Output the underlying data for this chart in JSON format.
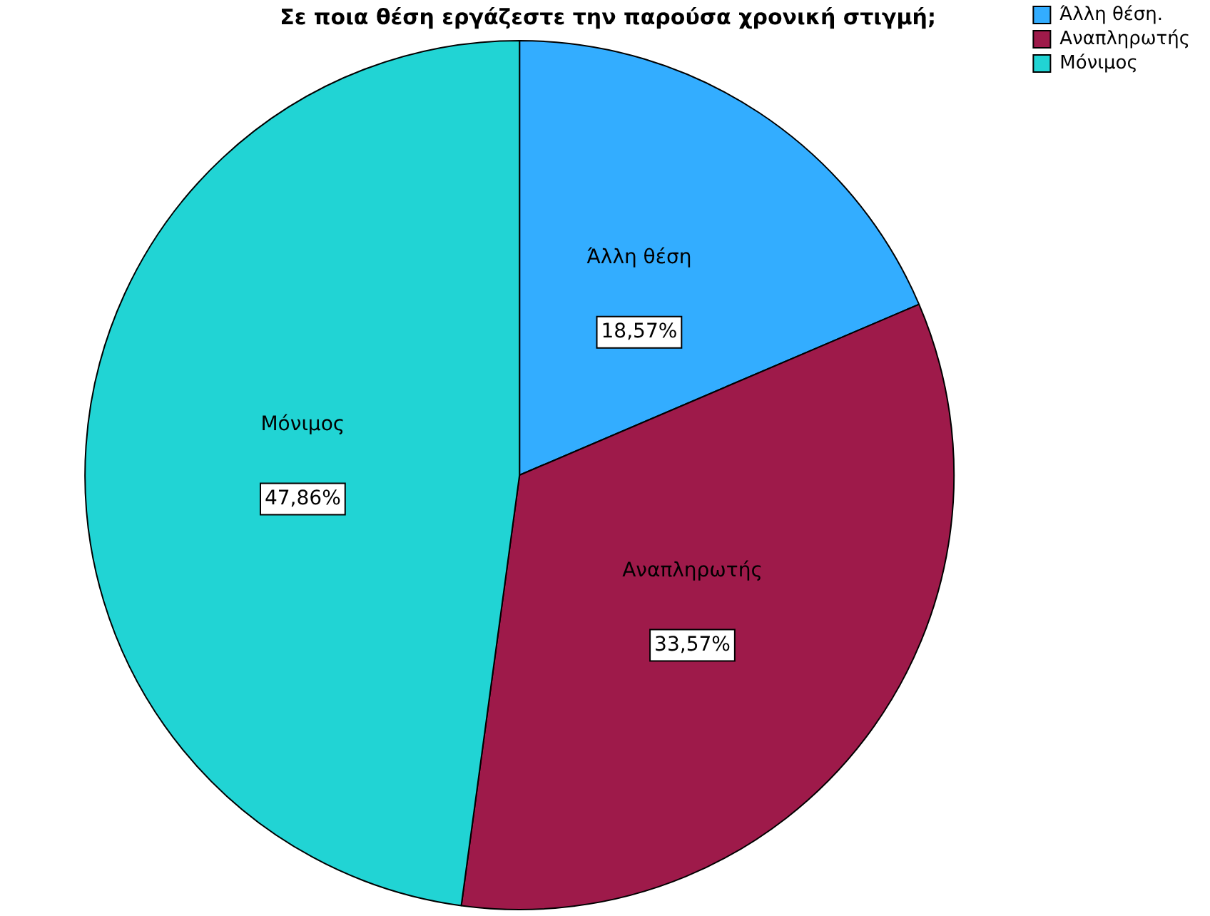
{
  "chart_data": {
    "type": "pie",
    "title": "Σε ποια θέση εργάζεστε την παρούσα χρονική στιγμή;",
    "categories": [
      "Άλλη θέση.",
      "Αναπληρωτής",
      "Μόνιμος"
    ],
    "values": [
      18.57,
      33.57,
      47.86
    ],
    "value_labels": [
      "18,57%",
      "33,57%",
      "47,86%"
    ],
    "colors": [
      "#33adff",
      "#9e1a4a",
      "#21d4d4"
    ],
    "annotations": [
      {
        "text": "Άλλη θέση",
        "x": "Άλλη θέση."
      },
      {
        "text": "Αναπληρωτής",
        "x": "Αναπληρωτής"
      },
      {
        "text": "Μόνιμος",
        "x": "Μόνιμος"
      }
    ],
    "legend": "top right"
  }
}
